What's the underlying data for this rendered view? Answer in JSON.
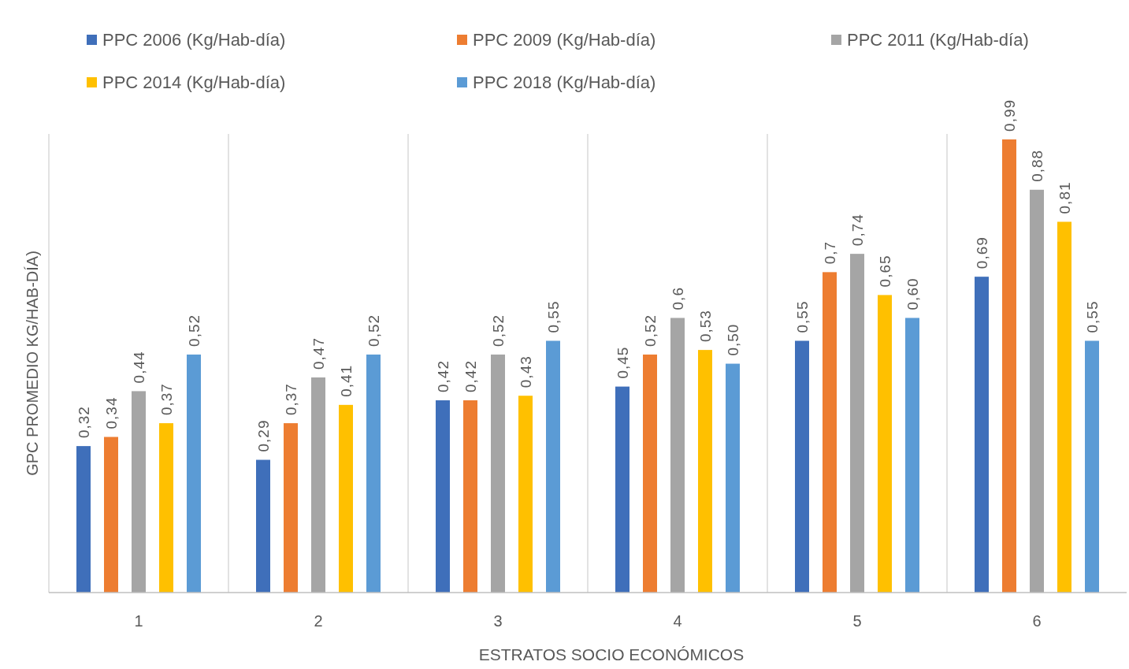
{
  "chart_data": {
    "type": "bar",
    "xlabel": "ESTRATOS SOCIO ECONÓMICOS",
    "ylabel": "GPC PROMEDIO  KG/HAB-DÍA)",
    "categories": [
      "1",
      "2",
      "3",
      "4",
      "5",
      "6"
    ],
    "grid": "x",
    "legend": "top left",
    "series": [
      {
        "name": "PPC 2006 (Kg/Hab-día)",
        "color": "#3f6fba",
        "values": [
          0.32,
          0.29,
          0.42,
          0.45,
          0.55,
          0.69
        ],
        "value_labels": [
          "0,32",
          "0,29",
          "0,42",
          "0,45",
          "0,55",
          "0,69"
        ]
      },
      {
        "name": "PPC 2009 (Kg/Hab-día)",
        "color": "#ed7d31",
        "values": [
          0.34,
          0.37,
          0.42,
          0.52,
          0.7,
          0.99
        ],
        "value_labels": [
          "0,34",
          "0,37",
          "0,42",
          "0,52",
          "0,7",
          "0,99"
        ]
      },
      {
        "name": "PPC 2011 (Kg/Hab-día)",
        "color": "#a5a5a5",
        "values": [
          0.44,
          0.47,
          0.52,
          0.6,
          0.74,
          0.88
        ],
        "value_labels": [
          "0,44",
          "0,47",
          "0,52",
          "0,6",
          "0,74",
          "0,88"
        ]
      },
      {
        "name": "PPC 2014 (Kg/Hab-día)",
        "color": "#ffc000",
        "values": [
          0.37,
          0.41,
          0.43,
          0.53,
          0.65,
          0.81
        ],
        "value_labels": [
          "0,37",
          "0,41",
          "0,43",
          "0,53",
          "0,65",
          "0,81"
        ]
      },
      {
        "name": "PPC 2018 (Kg/Hab-día)",
        "color": "#5b9bd5",
        "values": [
          0.52,
          0.52,
          0.55,
          0.5,
          0.6,
          0.55
        ],
        "value_labels": [
          "0,52",
          "0,52",
          "0,55",
          "0,50",
          "0,60",
          "0,55"
        ]
      }
    ]
  }
}
